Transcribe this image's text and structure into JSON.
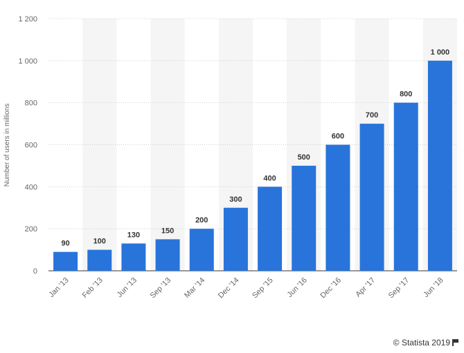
{
  "chart_data": {
    "type": "bar",
    "categories": [
      "Jan '13",
      "Feb '13",
      "Jun '13",
      "Sep '13",
      "Mar '14",
      "Dec '14",
      "Sep '15",
      "Jun '16",
      "Dec '16",
      "Apr '17",
      "Sep '17",
      "Jun '18"
    ],
    "values": [
      90,
      100,
      130,
      150,
      200,
      300,
      400,
      500,
      600,
      700,
      800,
      1000
    ],
    "data_labels": [
      "90",
      "100",
      "130",
      "150",
      "200",
      "300",
      "400",
      "500",
      "600",
      "700",
      "800",
      "1 000"
    ],
    "ylabel": "Number of users in millions",
    "xlabel": "",
    "ylim": [
      0,
      1200
    ],
    "yticks": [
      0,
      200,
      400,
      600,
      800,
      1000,
      1200
    ],
    "ytick_labels": [
      "0",
      "200",
      "400",
      "600",
      "800",
      "1 000",
      "1 200"
    ],
    "grid": true,
    "bar_color": "#2874db",
    "band_color": "#f5f5f5"
  },
  "credit": {
    "text": "© Statista 2019",
    "icon": "flag-icon"
  }
}
